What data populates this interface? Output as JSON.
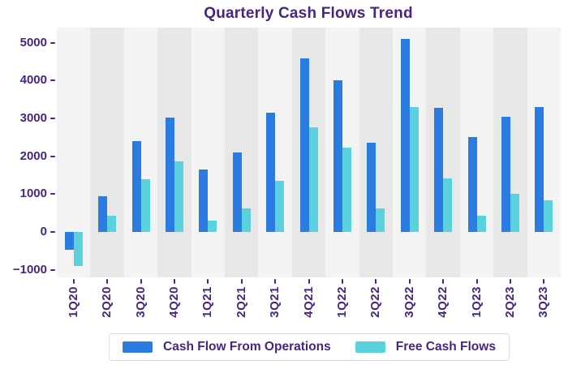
{
  "chart_data": {
    "type": "bar",
    "title": "Quarterly Cash Flows Trend",
    "categories": [
      "1Q20",
      "2Q20",
      "3Q20",
      "4Q20",
      "1Q21",
      "2Q21",
      "3Q21",
      "4Q21",
      "1Q22",
      "2Q22",
      "3Q22",
      "4Q22",
      "1Q23",
      "2Q23",
      "3Q23"
    ],
    "series": [
      {
        "name": "Cash Flow From Operations",
        "color": "#2B7CE1",
        "values": [
          -480,
          950,
          2400,
          3020,
          1650,
          2110,
          3150,
          4580,
          4000,
          2360,
          5100,
          3280,
          2500,
          3050,
          3300
        ]
      },
      {
        "name": "Free Cash Flows",
        "color": "#5CD1DE",
        "values": [
          -900,
          420,
          1400,
          1870,
          300,
          630,
          1340,
          2770,
          2230,
          630,
          3290,
          1420,
          430,
          1000,
          830
        ]
      }
    ],
    "xlabel": "",
    "ylabel": "",
    "ylim": [
      -1200,
      5400
    ],
    "yticks": [
      -1000,
      0,
      1000,
      2000,
      3000,
      4000,
      5000
    ],
    "grid": "off",
    "legend_position": "bottom-center",
    "colors": {
      "text": "#46267E",
      "band_light": "#F3F3F3",
      "band_dark": "#E7E7E7"
    }
  }
}
